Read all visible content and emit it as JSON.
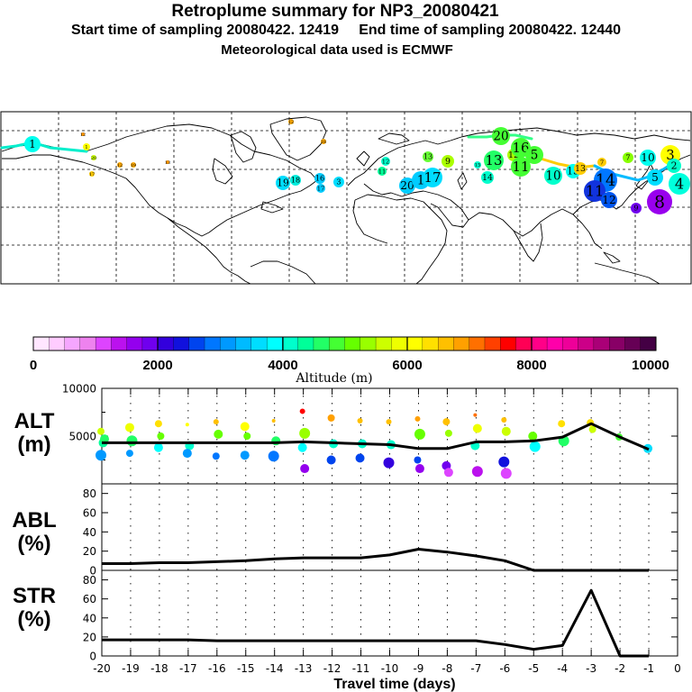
{
  "header": {
    "title": "Retroplume summary for NP3_20080421",
    "start_label": "Start time of sampling 20080422. 12419",
    "end_label": "End time of sampling 20080422. 12440",
    "met_label": "Meteorological data used is ECMWF"
  },
  "colorbar": {
    "title": "Altitude (m)",
    "ticks": [
      "0",
      "2000",
      "4000",
      "6000",
      "8000",
      "10000"
    ],
    "colors": [
      "#ffe6ff",
      "#ffccff",
      "#f5a6ff",
      "#ee82ee",
      "#dd44ff",
      "#bb11ee",
      "#9400ee",
      "#7000ee",
      "#3300dd",
      "#1111dd",
      "#0044ee",
      "#0077ff",
      "#0099ff",
      "#00bbff",
      "#00ddff",
      "#00ffff",
      "#00ffcc",
      "#00ff99",
      "#22ff66",
      "#44ff33",
      "#66ff00",
      "#99ff00",
      "#ccff00",
      "#eeff00",
      "#ffff00",
      "#ffe000",
      "#ffc000",
      "#ffa000",
      "#ff7000",
      "#ff4000",
      "#ff0000",
      "#ff0055",
      "#ff0088",
      "#ff00aa",
      "#ee0099",
      "#cc0088",
      "#aa0077",
      "#880066",
      "#660055",
      "#440044"
    ]
  },
  "map_labels": [
    {
      "t": "1",
      "c": "#00ffee"
    },
    {
      "t": "1",
      "c": "#ffff00"
    },
    {
      "t": "20",
      "c": "#c8ff00"
    },
    {
      "t": "17",
      "c": "#ffcc00"
    },
    {
      "t": "12",
      "c": "#ffaa00"
    },
    {
      "t": "19",
      "c": "#ffaa00"
    },
    {
      "t": "12",
      "c": "#ff9900"
    },
    {
      "t": "13",
      "c": "#ff9900"
    },
    {
      "t": "19",
      "c": "#00ddff"
    },
    {
      "t": "18",
      "c": "#00eedd"
    },
    {
      "t": "16",
      "c": "#00ccff"
    },
    {
      "t": "17",
      "c": "#00ccff"
    },
    {
      "t": "3",
      "c": "#00ddff"
    },
    {
      "t": "12",
      "c": "#00ffcc"
    },
    {
      "t": "11",
      "c": "#00ff99"
    },
    {
      "t": "20",
      "c": "#00ccff"
    },
    {
      "t": "1",
      "c": "#00ccff"
    },
    {
      "t": "17",
      "c": "#00ddff"
    },
    {
      "t": "13",
      "c": "#66ff33"
    },
    {
      "t": "9",
      "c": "#aaff00"
    },
    {
      "t": "15",
      "c": "#00ffcc"
    },
    {
      "t": "13",
      "c": "#22ff66"
    },
    {
      "t": "14",
      "c": "#00ffcc"
    },
    {
      "t": "20",
      "c": "#44ff33"
    },
    {
      "t": "12",
      "c": "#aaff00"
    },
    {
      "t": "16",
      "c": "#44ff33"
    },
    {
      "t": "5",
      "c": "#44ff33"
    },
    {
      "t": "11",
      "c": "#44ff33"
    },
    {
      "t": "10",
      "c": "#00ffcc"
    },
    {
      "t": "15",
      "c": "#00ffee"
    },
    {
      "t": "13",
      "c": "#ffcc00"
    },
    {
      "t": "7",
      "c": "#ffcc00"
    },
    {
      "t": "7",
      "c": "#88ff00"
    },
    {
      "t": "10",
      "c": "#00ffee"
    },
    {
      "t": "3",
      "c": "#ffff00"
    },
    {
      "t": "4",
      "c": "#00ffdd"
    },
    {
      "t": "14",
      "c": "#0077ff"
    },
    {
      "t": "11",
      "c": "#1133dd"
    },
    {
      "t": "12",
      "c": "#0055ee"
    },
    {
      "t": "8",
      "c": "#9900ee"
    },
    {
      "t": "9",
      "c": "#7000ee"
    },
    {
      "t": "5",
      "c": "#00ddff"
    },
    {
      "t": "2",
      "c": "#00ffcc"
    },
    {
      "t": "12",
      "c": "#ffaa00"
    },
    {
      "t": "18",
      "c": "#ffaa00"
    }
  ],
  "chart_data": [
    {
      "type": "scatter",
      "panel": "ALT",
      "ylabel_line1": "ALT",
      "ylabel_line2": "(m)",
      "ylim": [
        0,
        10000
      ],
      "yticks": [
        "5000",
        "10000"
      ],
      "xlim": [
        -20,
        0
      ],
      "line": {
        "name": "mean altitude",
        "x": [
          -20,
          -19,
          -18,
          -17,
          -16,
          -15,
          -14,
          -13,
          -12,
          -11,
          -10,
          -9,
          -8,
          -7,
          -6,
          -5,
          -4,
          -3,
          -2,
          -1
        ],
        "y": [
          4300,
          4300,
          4300,
          4300,
          4300,
          4300,
          4300,
          4400,
          4300,
          4200,
          4100,
          3700,
          3700,
          4400,
          4400,
          4500,
          4900,
          6300,
          4900,
          3600
        ]
      },
      "clusters": [
        {
          "x": -20,
          "y": [
            5500,
            4300,
            3000
          ]
        },
        {
          "x": -19,
          "y": [
            5900,
            4500,
            3200
          ]
        },
        {
          "x": -18,
          "y": [
            6300,
            5000,
            3800
          ]
        },
        {
          "x": -17,
          "y": [
            6200,
            4000,
            3200
          ]
        },
        {
          "x": -16,
          "y": [
            6500,
            5200,
            2900
          ]
        },
        {
          "x": -15,
          "y": [
            6000,
            5000,
            3000
          ]
        },
        {
          "x": -14,
          "y": [
            6600,
            4500,
            2900
          ]
        },
        {
          "x": -13,
          "y": [
            7600,
            5300,
            3800,
            1600
          ]
        },
        {
          "x": -12,
          "y": [
            6900,
            4200,
            2500
          ]
        },
        {
          "x": -11,
          "y": [
            6600,
            4200,
            2700
          ]
        },
        {
          "x": -10,
          "y": [
            6500,
            4100,
            2200
          ]
        },
        {
          "x": -9,
          "y": [
            6800,
            5200,
            2500,
            1600
          ]
        },
        {
          "x": -8,
          "y": [
            6500,
            5300,
            1900,
            1200
          ]
        },
        {
          "x": -7,
          "y": [
            7200,
            5800,
            4000,
            1300
          ]
        },
        {
          "x": -6,
          "y": [
            6700,
            5500,
            2300,
            1100
          ]
        },
        {
          "x": -5,
          "y": [
            5000,
            3900
          ]
        },
        {
          "x": -4,
          "y": [
            6300,
            4500
          ]
        },
        {
          "x": -3,
          "y": [
            6400,
            5700
          ]
        },
        {
          "x": -2,
          "y": [
            4900
          ]
        },
        {
          "x": -1,
          "y": [
            3700
          ]
        }
      ]
    },
    {
      "type": "line",
      "panel": "ABL",
      "ylabel_line1": "ABL",
      "ylabel_line2": "(%)",
      "ylim": [
        0,
        90
      ],
      "yticks": [
        "0",
        "20",
        "40",
        "60",
        "80"
      ],
      "xlim": [
        -20,
        0
      ],
      "x": [
        -20,
        -19,
        -18,
        -17,
        -16,
        -15,
        -14,
        -13,
        -12,
        -11,
        -10,
        -9,
        -8,
        -7,
        -6,
        -5,
        -4,
        -3,
        -2,
        -1
      ],
      "y": [
        7,
        7,
        8,
        8,
        9,
        10,
        12,
        13,
        13,
        13,
        16,
        22,
        19,
        15,
        10,
        0,
        0,
        0,
        0,
        0
      ]
    },
    {
      "type": "line",
      "panel": "STR",
      "ylabel_line1": "STR",
      "ylabel_line2": "(%)",
      "ylim": [
        0,
        90
      ],
      "yticks": [
        "0",
        "20",
        "40",
        "60",
        "80"
      ],
      "xlim": [
        -20,
        0
      ],
      "x": [
        -20,
        -19,
        -18,
        -17,
        -16,
        -15,
        -14,
        -13,
        -12,
        -11,
        -10,
        -9,
        -8,
        -7,
        -6,
        -5,
        -4,
        -3,
        -2,
        -1
      ],
      "y": [
        17,
        17,
        17,
        17,
        16,
        16,
        16,
        16,
        16,
        16,
        16,
        16,
        16,
        16,
        12,
        7,
        11,
        69,
        0,
        0
      ]
    },
    {
      "type": "axis",
      "xlabel": "Travel time (days)",
      "xticks": [
        "-20",
        "-19",
        "-18",
        "-17",
        "-16",
        "-15",
        "-14",
        "-13",
        "-12",
        "-11",
        "-10",
        "-9",
        "-8",
        "-7",
        "-6",
        "-5",
        "-4",
        "-3",
        "-2",
        "-1",
        "0"
      ]
    }
  ]
}
